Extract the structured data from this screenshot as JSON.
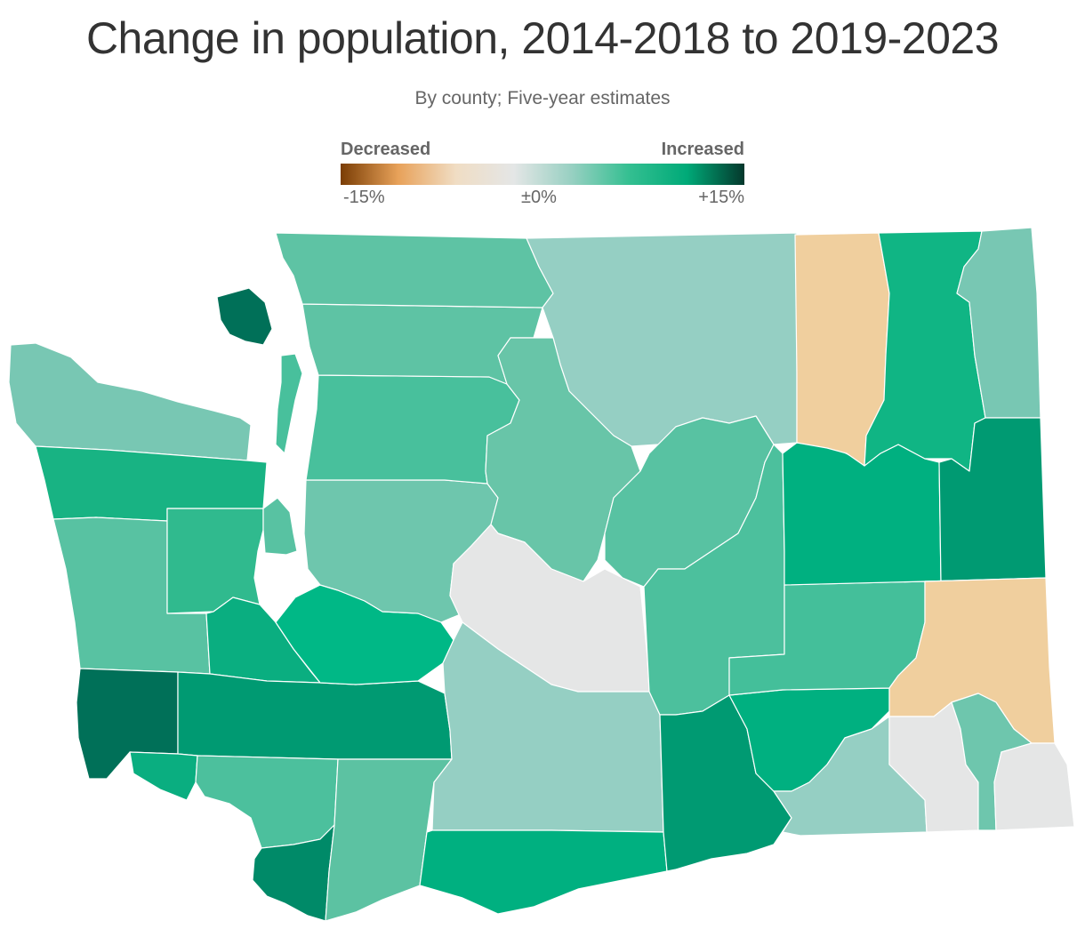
{
  "title": "Change in population, 2014-2018 to 2019-2023",
  "subtitle": "By county; Five-year estimates",
  "legend": {
    "low_label": "Decreased",
    "high_label": "Increased",
    "ticks": [
      "-15%",
      "±0%",
      "+15%"
    ],
    "scale_min": -15,
    "scale_max": 15,
    "colors": [
      "#7a3d05",
      "#e8a25a",
      "#f0ddc4",
      "#e4e6e6",
      "#98d0c2",
      "#34bf91",
      "#00aa78",
      "#04382c"
    ]
  },
  "regions": [
    {
      "name": "Clallam",
      "color": "#78c7b3"
    },
    {
      "name": "Jefferson",
      "color": "#18b383"
    },
    {
      "name": "Grays Harbor",
      "color": "#58c2a2"
    },
    {
      "name": "Mason",
      "color": "#30ba8e"
    },
    {
      "name": "Kitsap",
      "color": "#58c2a2"
    },
    {
      "name": "Pacific",
      "color": "#007058"
    },
    {
      "name": "Thurston",
      "color": "#0aae80"
    },
    {
      "name": "Lewis",
      "color": "#009a72"
    },
    {
      "name": "Wahkiakum",
      "color": "#0aae80"
    },
    {
      "name": "Cowlitz",
      "color": "#4cc09d"
    },
    {
      "name": "Clark",
      "color": "#008a68"
    },
    {
      "name": "Skamania",
      "color": "#5cc2a2"
    },
    {
      "name": "Pierce",
      "color": "#00b886"
    },
    {
      "name": "King",
      "color": "#6ec6ad"
    },
    {
      "name": "Snohomish",
      "color": "#48c09c"
    },
    {
      "name": "Skagit",
      "color": "#5ec3a4"
    },
    {
      "name": "Whatcom",
      "color": "#5ec3a4"
    },
    {
      "name": "San Juan",
      "color": "#007058"
    },
    {
      "name": "Island",
      "color": "#48c09c"
    },
    {
      "name": "Okanogan",
      "color": "#95cfc3"
    },
    {
      "name": "Chelan",
      "color": "#68c5a8"
    },
    {
      "name": "Douglas",
      "color": "#58c2a2"
    },
    {
      "name": "Kittitas",
      "color": "#e5e6e6"
    },
    {
      "name": "Yakima",
      "color": "#95cfc3"
    },
    {
      "name": "Klickitat",
      "color": "#00b080"
    },
    {
      "name": "Grant",
      "color": "#4cc09d"
    },
    {
      "name": "Benton",
      "color": "#009a72"
    },
    {
      "name": "Franklin",
      "color": "#00b080"
    },
    {
      "name": "Adams",
      "color": "#44bf9a"
    },
    {
      "name": "Lincoln",
      "color": "#00b080"
    },
    {
      "name": "Ferry",
      "color": "#f0cf9e"
    },
    {
      "name": "Stevens",
      "color": "#10b584"
    },
    {
      "name": "Pend Oreille",
      "color": "#78c7b3"
    },
    {
      "name": "Spokane",
      "color": "#009a72"
    },
    {
      "name": "Whitman",
      "color": "#f0cf9e"
    },
    {
      "name": "Walla Walla",
      "color": "#95cfc3"
    },
    {
      "name": "Columbia",
      "color": "#e5e6e6"
    },
    {
      "name": "Garfield",
      "color": "#6ec6ad"
    },
    {
      "name": "Asotin",
      "color": "#e5e6e6"
    }
  ]
}
